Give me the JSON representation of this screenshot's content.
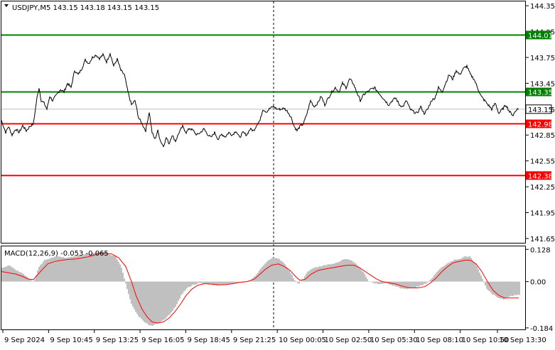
{
  "chart_data": [
    {
      "type": "line",
      "title": "USDJPY,M5  143.15 143.18 143.15 143.15",
      "symbol": "USDJPY,M5",
      "ohlc": [
        "143.15",
        "143.18",
        "143.15",
        "143.15"
      ],
      "ylim": [
        141.6,
        144.4
      ],
      "yticks": [
        "144.35",
        "144.05",
        "143.75",
        "143.45",
        "143.15",
        "142.85",
        "142.55",
        "142.25",
        "141.95",
        "141.65"
      ],
      "xticks": [
        "9 Sep 2024",
        "9 Sep 10:45",
        "9 Sep 13:25",
        "9 Sep 16:05",
        "9 Sep 18:45",
        "9 Sep 21:25",
        "10 Sep 00:05",
        "10 Sep 02:50",
        "10 Sep 05:30",
        "10 Sep 08:10",
        "10 Sep 10:50",
        "10 Sep 13:30"
      ],
      "grid": false,
      "levels": [
        {
          "value": 144.01,
          "label": "144.01",
          "color": "#008000"
        },
        {
          "value": 143.35,
          "label": "143.35",
          "color": "#008000"
        },
        {
          "value": 142.98,
          "label": "142.98",
          "color": "#ff0000"
        },
        {
          "value": 142.38,
          "label": "142.38",
          "color": "#ff0000"
        }
      ],
      "current_price": {
        "value": 143.15,
        "label": "143.15"
      },
      "price_anchors": [
        [
          0,
          143.02
        ],
        [
          3,
          142.95
        ],
        [
          6,
          142.88
        ],
        [
          10,
          142.95
        ],
        [
          15,
          142.85
        ],
        [
          20,
          142.92
        ],
        [
          25,
          142.88
        ],
        [
          30,
          142.96
        ],
        [
          35,
          142.9
        ],
        [
          40,
          142.95
        ],
        [
          45,
          142.98
        ],
        [
          50,
          143.28
        ],
        [
          53,
          143.4
        ],
        [
          56,
          143.25
        ],
        [
          60,
          143.22
        ],
        [
          64,
          143.15
        ],
        [
          68,
          143.3
        ],
        [
          72,
          143.25
        ],
        [
          78,
          143.32
        ],
        [
          83,
          143.38
        ],
        [
          88,
          143.35
        ],
        [
          93,
          143.45
        ],
        [
          98,
          143.4
        ],
        [
          103,
          143.6
        ],
        [
          108,
          143.55
        ],
        [
          113,
          143.62
        ],
        [
          118,
          143.72
        ],
        [
          123,
          143.68
        ],
        [
          128,
          143.75
        ],
        [
          133,
          143.78
        ],
        [
          138,
          143.74
        ],
        [
          143,
          143.78
        ],
        [
          148,
          143.7
        ],
        [
          153,
          143.8
        ],
        [
          158,
          143.65
        ],
        [
          163,
          143.73
        ],
        [
          168,
          143.6
        ],
        [
          173,
          143.55
        ],
        [
          178,
          143.35
        ],
        [
          183,
          143.2
        ],
        [
          188,
          143.25
        ],
        [
          193,
          143.05
        ],
        [
          198,
          142.98
        ],
        [
          203,
          142.9
        ],
        [
          208,
          143.12
        ],
        [
          212,
          142.88
        ],
        [
          216,
          142.8
        ],
        [
          220,
          142.9
        ],
        [
          224,
          142.78
        ],
        [
          228,
          142.72
        ],
        [
          232,
          142.82
        ],
        [
          236,
          142.75
        ],
        [
          240,
          142.85
        ],
        [
          245,
          142.78
        ],
        [
          250,
          142.88
        ],
        [
          255,
          142.95
        ],
        [
          260,
          142.88
        ],
        [
          265,
          142.93
        ],
        [
          270,
          142.9
        ],
        [
          275,
          142.85
        ],
        [
          280,
          142.88
        ],
        [
          285,
          142.92
        ],
        [
          290,
          142.86
        ],
        [
          295,
          142.82
        ],
        [
          300,
          142.88
        ],
        [
          305,
          142.8
        ],
        [
          310,
          142.86
        ],
        [
          315,
          142.83
        ],
        [
          320,
          142.88
        ],
        [
          325,
          142.85
        ],
        [
          330,
          142.9
        ],
        [
          335,
          142.82
        ],
        [
          340,
          142.88
        ],
        [
          345,
          142.85
        ],
        [
          350,
          142.92
        ],
        [
          355,
          142.9
        ],
        [
          360,
          142.98
        ],
        [
          364,
          143.02
        ],
        [
          368,
          143.15
        ],
        [
          373,
          143.12
        ],
        [
          378,
          143.16
        ],
        [
          383,
          143.18
        ],
        [
          388,
          143.15
        ],
        [
          393,
          143.15
        ],
        [
          398,
          143.16
        ],
        [
          403,
          143.12
        ],
        [
          408,
          143.05
        ],
        [
          412,
          142.95
        ],
        [
          416,
          142.9
        ],
        [
          420,
          142.95
        ],
        [
          425,
          142.98
        ],
        [
          430,
          143.1
        ],
        [
          435,
          143.25
        ],
        [
          440,
          143.18
        ],
        [
          445,
          143.22
        ],
        [
          450,
          143.3
        ],
        [
          455,
          143.2
        ],
        [
          460,
          143.28
        ],
        [
          465,
          143.35
        ],
        [
          470,
          143.4
        ],
        [
          475,
          143.35
        ],
        [
          480,
          143.45
        ],
        [
          485,
          143.4
        ],
        [
          490,
          143.5
        ],
        [
          495,
          143.45
        ],
        [
          500,
          143.35
        ],
        [
          505,
          143.25
        ],
        [
          510,
          143.32
        ],
        [
          515,
          143.35
        ],
        [
          520,
          143.38
        ],
        [
          525,
          143.4
        ],
        [
          530,
          143.35
        ],
        [
          535,
          143.3
        ],
        [
          540,
          143.25
        ],
        [
          545,
          143.2
        ],
        [
          550,
          143.25
        ],
        [
          555,
          143.28
        ],
        [
          560,
          143.2
        ],
        [
          565,
          143.18
        ],
        [
          570,
          143.25
        ],
        [
          575,
          143.15
        ],
        [
          580,
          143.12
        ],
        [
          585,
          143.1
        ],
        [
          590,
          143.18
        ],
        [
          595,
          143.1
        ],
        [
          600,
          143.15
        ],
        [
          605,
          143.25
        ],
        [
          610,
          143.28
        ],
        [
          615,
          143.4
        ],
        [
          620,
          143.35
        ],
        [
          625,
          143.45
        ],
        [
          630,
          143.55
        ],
        [
          635,
          143.5
        ],
        [
          640,
          143.6
        ],
        [
          645,
          143.55
        ],
        [
          650,
          143.62
        ],
        [
          655,
          143.65
        ],
        [
          660,
          143.55
        ],
        [
          665,
          143.5
        ],
        [
          670,
          143.4
        ],
        [
          675,
          143.3
        ],
        [
          680,
          143.25
        ],
        [
          685,
          143.2
        ],
        [
          690,
          143.15
        ],
        [
          695,
          143.22
        ],
        [
          700,
          143.1
        ],
        [
          705,
          143.15
        ],
        [
          710,
          143.2
        ],
        [
          715,
          143.12
        ],
        [
          720,
          143.08
        ],
        [
          725,
          143.15
        ],
        [
          728,
          143.15
        ]
      ]
    },
    {
      "type": "bar",
      "title": "MACD(12,26,9) -0.053 -0.065",
      "indicator": "MACD(12,26,9)",
      "values_text": [
        "-0.053",
        "-0.065"
      ],
      "ylim": [
        -0.19,
        0.14
      ],
      "yticks": [
        "0.128",
        "0.00",
        "-0.184"
      ],
      "histogram_color": "#c0c0c0",
      "signal_color": "#ff0000",
      "histogram_anchors": [
        [
          0,
          0.055
        ],
        [
          10,
          0.065
        ],
        [
          20,
          0.045
        ],
        [
          30,
          0.03
        ],
        [
          38,
          0.012
        ],
        [
          45,
          0.0
        ],
        [
          52,
          0.06
        ],
        [
          60,
          0.085
        ],
        [
          70,
          0.095
        ],
        [
          80,
          0.1
        ],
        [
          90,
          0.095
        ],
        [
          100,
          0.1
        ],
        [
          110,
          0.105
        ],
        [
          120,
          0.11
        ],
        [
          130,
          0.115
        ],
        [
          140,
          0.12
        ],
        [
          150,
          0.11
        ],
        [
          160,
          0.1
        ],
        [
          168,
          0.055
        ],
        [
          175,
          -0.02
        ],
        [
          182,
          -0.09
        ],
        [
          190,
          -0.13
        ],
        [
          198,
          -0.155
        ],
        [
          205,
          -0.17
        ],
        [
          212,
          -0.175
        ],
        [
          220,
          -0.165
        ],
        [
          228,
          -0.15
        ],
        [
          236,
          -0.13
        ],
        [
          244,
          -0.1
        ],
        [
          252,
          -0.055
        ],
        [
          260,
          -0.025
        ],
        [
          268,
          -0.015
        ],
        [
          278,
          -0.005
        ],
        [
          290,
          -0.01
        ],
        [
          300,
          -0.015
        ],
        [
          310,
          -0.012
        ],
        [
          320,
          -0.01
        ],
        [
          330,
          -0.005
        ],
        [
          340,
          0.0
        ],
        [
          350,
          0.005
        ],
        [
          358,
          0.03
        ],
        [
          366,
          0.06
        ],
        [
          374,
          0.085
        ],
        [
          382,
          0.095
        ],
        [
          390,
          0.09
        ],
        [
          398,
          0.07
        ],
        [
          405,
          0.04
        ],
        [
          412,
          0.005
        ],
        [
          418,
          -0.01
        ],
        [
          424,
          0.01
        ],
        [
          430,
          0.04
        ],
        [
          438,
          0.055
        ],
        [
          446,
          0.06
        ],
        [
          454,
          0.065
        ],
        [
          462,
          0.07
        ],
        [
          470,
          0.075
        ],
        [
          478,
          0.085
        ],
        [
          486,
          0.09
        ],
        [
          494,
          0.08
        ],
        [
          502,
          0.06
        ],
        [
          510,
          0.03
        ],
        [
          516,
          0.0
        ],
        [
          522,
          -0.005
        ],
        [
          530,
          -0.01
        ],
        [
          540,
          -0.005
        ],
        [
          550,
          -0.015
        ],
        [
          560,
          -0.025
        ],
        [
          570,
          -0.03
        ],
        [
          580,
          -0.025
        ],
        [
          590,
          -0.015
        ],
        [
          598,
          -0.005
        ],
        [
          604,
          0.01
        ],
        [
          612,
          0.04
        ],
        [
          620,
          0.06
        ],
        [
          628,
          0.075
        ],
        [
          636,
          0.085
        ],
        [
          644,
          0.09
        ],
        [
          652,
          0.1
        ],
        [
          658,
          0.1
        ],
        [
          664,
          0.08
        ],
        [
          670,
          0.05
        ],
        [
          676,
          0.01
        ],
        [
          682,
          -0.03
        ],
        [
          690,
          -0.05
        ],
        [
          698,
          -0.065
        ],
        [
          706,
          -0.07
        ],
        [
          714,
          -0.06
        ],
        [
          722,
          -0.053
        ],
        [
          728,
          -0.053
        ]
      ],
      "signal_anchors": [
        [
          0,
          0.04
        ],
        [
          10,
          0.035
        ],
        [
          20,
          0.03
        ],
        [
          30,
          0.02
        ],
        [
          38,
          0.01
        ],
        [
          45,
          0.008
        ],
        [
          55,
          0.04
        ],
        [
          65,
          0.07
        ],
        [
          75,
          0.08
        ],
        [
          85,
          0.085
        ],
        [
          95,
          0.088
        ],
        [
          105,
          0.09
        ],
        [
          115,
          0.095
        ],
        [
          125,
          0.1
        ],
        [
          135,
          0.11
        ],
        [
          145,
          0.112
        ],
        [
          155,
          0.11
        ],
        [
          165,
          0.095
        ],
        [
          175,
          0.06
        ],
        [
          183,
          0.0
        ],
        [
          190,
          -0.06
        ],
        [
          198,
          -0.11
        ],
        [
          205,
          -0.14
        ],
        [
          212,
          -0.16
        ],
        [
          220,
          -0.165
        ],
        [
          228,
          -0.16
        ],
        [
          236,
          -0.145
        ],
        [
          244,
          -0.12
        ],
        [
          252,
          -0.09
        ],
        [
          260,
          -0.055
        ],
        [
          268,
          -0.03
        ],
        [
          276,
          -0.015
        ],
        [
          286,
          -0.008
        ],
        [
          296,
          -0.01
        ],
        [
          306,
          -0.013
        ],
        [
          316,
          -0.012
        ],
        [
          326,
          -0.008
        ],
        [
          336,
          -0.003
        ],
        [
          346,
          0.0
        ],
        [
          356,
          0.01
        ],
        [
          364,
          0.03
        ],
        [
          372,
          0.05
        ],
        [
          380,
          0.065
        ],
        [
          390,
          0.07
        ],
        [
          398,
          0.06
        ],
        [
          406,
          0.045
        ],
        [
          414,
          0.02
        ],
        [
          420,
          0.005
        ],
        [
          428,
          0.01
        ],
        [
          436,
          0.03
        ],
        [
          446,
          0.045
        ],
        [
          456,
          0.05
        ],
        [
          466,
          0.055
        ],
        [
          476,
          0.06
        ],
        [
          486,
          0.065
        ],
        [
          496,
          0.065
        ],
        [
          504,
          0.055
        ],
        [
          512,
          0.04
        ],
        [
          520,
          0.025
        ],
        [
          528,
          0.01
        ],
        [
          536,
          0.0
        ],
        [
          546,
          -0.005
        ],
        [
          556,
          -0.01
        ],
        [
          566,
          -0.02
        ],
        [
          576,
          -0.025
        ],
        [
          586,
          -0.025
        ],
        [
          596,
          -0.02
        ],
        [
          604,
          -0.005
        ],
        [
          612,
          0.015
        ],
        [
          620,
          0.04
        ],
        [
          628,
          0.06
        ],
        [
          636,
          0.075
        ],
        [
          644,
          0.08
        ],
        [
          652,
          0.085
        ],
        [
          660,
          0.085
        ],
        [
          668,
          0.07
        ],
        [
          676,
          0.04
        ],
        [
          684,
          0.0
        ],
        [
          692,
          -0.035
        ],
        [
          700,
          -0.055
        ],
        [
          708,
          -0.065
        ],
        [
          716,
          -0.065
        ],
        [
          722,
          -0.065
        ],
        [
          728,
          -0.065
        ]
      ]
    }
  ]
}
